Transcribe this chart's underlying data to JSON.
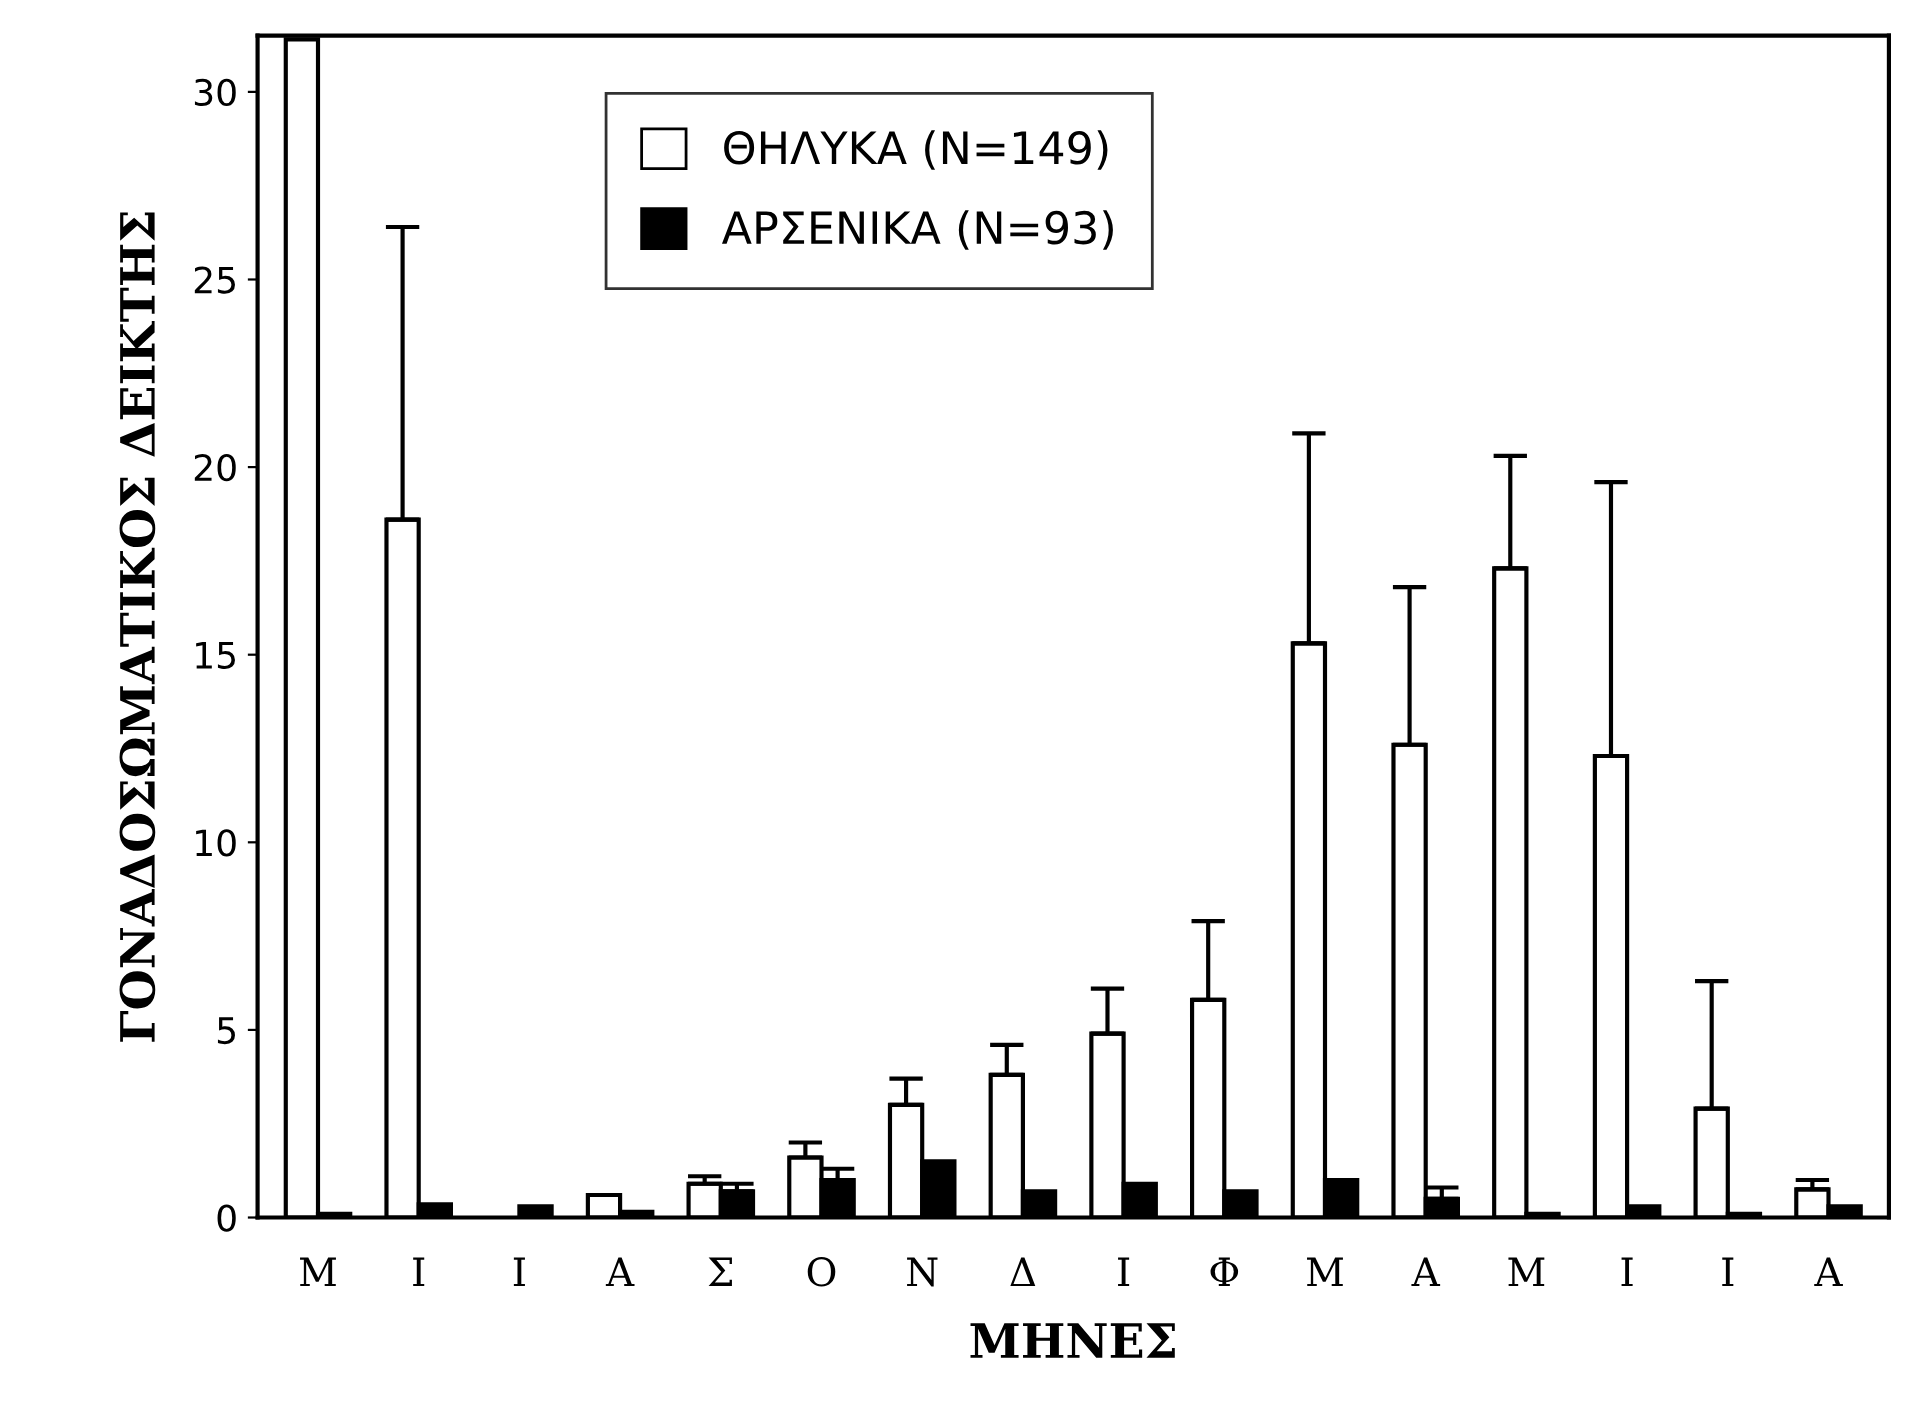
{
  "chart_data": {
    "type": "bar",
    "xlabel": "ΜΗΝΕΣ",
    "ylabel": "ΓΟΝΑΔΟΣΩΜΑΤΙΚΟΣ ΔΕΙΚΤΗΣ",
    "categories": [
      "Μ",
      "Ι",
      "Ι",
      "Α",
      "Σ",
      "Ο",
      "Ν",
      "Δ",
      "Ι",
      "Φ",
      "Μ",
      "Α",
      "Μ",
      "Ι",
      "Ι",
      "Α"
    ],
    "series": [
      {
        "name": "ΘΗΛΥΚΑ (N=149)",
        "color": "#ffffff",
        "values": [
          31.4,
          18.6,
          null,
          0.6,
          0.9,
          1.6,
          3.0,
          3.8,
          4.9,
          5.8,
          15.3,
          12.6,
          17.3,
          12.3,
          2.9,
          0.75
        ],
        "errors": [
          null,
          [
            18.6,
            26.4
          ],
          null,
          null,
          [
            0.9,
            1.1
          ],
          [
            1.6,
            2.0
          ],
          [
            3.0,
            3.7
          ],
          [
            3.8,
            4.6
          ],
          [
            4.9,
            6.1
          ],
          [
            5.8,
            7.9
          ],
          [
            15.3,
            20.9
          ],
          [
            12.6,
            16.8
          ],
          [
            17.3,
            20.3
          ],
          [
            12.3,
            19.6
          ],
          [
            2.9,
            6.3
          ],
          [
            0.75,
            1.0
          ]
        ]
      },
      {
        "name": "ΑΡΣΕΝΙΚΑ (N=93)",
        "color": "#000000",
        "values": [
          0.1,
          0.35,
          0.3,
          0.15,
          0.7,
          1.0,
          1.5,
          0.7,
          0.9,
          0.7,
          1.0,
          0.5,
          0.1,
          0.3,
          0.1,
          0.3
        ],
        "errors": [
          null,
          null,
          null,
          null,
          [
            0.7,
            0.9
          ],
          [
            1.0,
            1.3
          ],
          null,
          null,
          null,
          null,
          null,
          [
            0.5,
            0.8
          ],
          null,
          null,
          null,
          null
        ]
      }
    ],
    "ylim": [
      0,
      31.5
    ],
    "yticks": [
      0,
      5,
      10,
      15,
      20,
      25,
      30
    ],
    "grid": false,
    "legend": "top center"
  }
}
